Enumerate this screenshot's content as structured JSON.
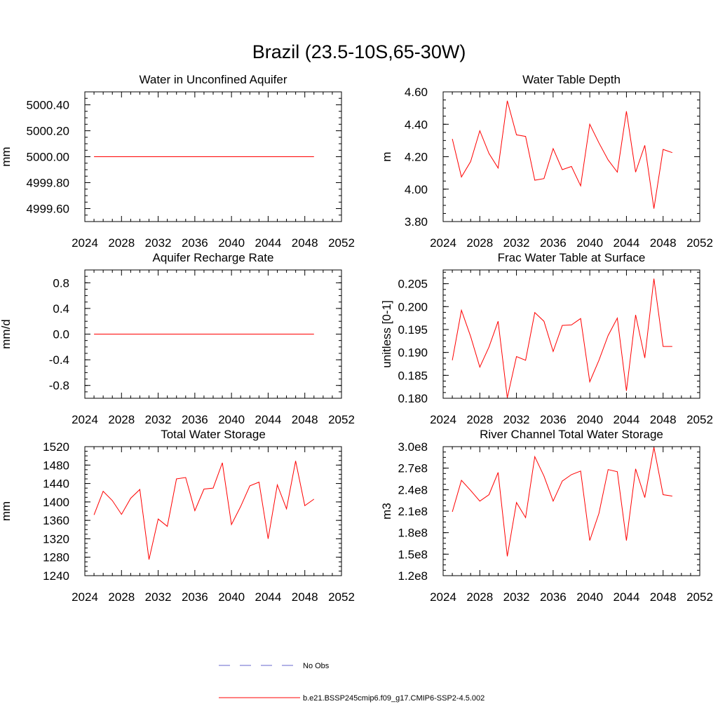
{
  "page_title": "Brazil (23.5-10S,65-30W)",
  "colors": {
    "model": "#ff0000",
    "obs": "#6666cc",
    "axis": "#000000"
  },
  "legend": {
    "obs_label": "No Obs",
    "model_label": "b.e21.BSSP245cmip6.f09_g17.CMIP6-SSP2-4.5.002"
  },
  "chart_data": [
    {
      "type": "line",
      "title": "Water in Unconfined Aquifer",
      "xlabel": "",
      "ylabel": "mm",
      "xlim": [
        2024,
        2052
      ],
      "ylim": [
        4999.5,
        5000.5
      ],
      "xticks": [
        2024,
        2028,
        2032,
        2036,
        2040,
        2044,
        2048,
        2052
      ],
      "yticks": [
        4999.6,
        4999.8,
        5000.0,
        5000.2,
        5000.4
      ],
      "ytick_labels": [
        "4999.60",
        "4999.80",
        "5000.00",
        "5000.20",
        "5000.40"
      ],
      "x": [
        2025,
        2026,
        2027,
        2028,
        2029,
        2030,
        2031,
        2032,
        2033,
        2034,
        2035,
        2036,
        2037,
        2038,
        2039,
        2040,
        2041,
        2042,
        2043,
        2044,
        2045,
        2046,
        2047,
        2048,
        2049
      ],
      "series": [
        {
          "name": "b.e21.BSSP245cmip6.f09_g17.CMIP6-SSP2-4.5.002",
          "values": [
            5000,
            5000,
            5000,
            5000,
            5000,
            5000,
            5000,
            5000,
            5000,
            5000,
            5000,
            5000,
            5000,
            5000,
            5000,
            5000,
            5000,
            5000,
            5000,
            5000,
            5000,
            5000,
            5000,
            5000,
            5000
          ]
        }
      ]
    },
    {
      "type": "line",
      "title": "Water Table Depth",
      "xlabel": "",
      "ylabel": "m",
      "xlim": [
        2024,
        2052
      ],
      "ylim": [
        3.8,
        4.6
      ],
      "xticks": [
        2024,
        2028,
        2032,
        2036,
        2040,
        2044,
        2048,
        2052
      ],
      "yticks": [
        3.8,
        4.0,
        4.2,
        4.4,
        4.6
      ],
      "ytick_labels": [
        "3.80",
        "4.00",
        "4.20",
        "4.40",
        "4.60"
      ],
      "x": [
        2025,
        2026,
        2027,
        2028,
        2029,
        2030,
        2031,
        2032,
        2033,
        2034,
        2035,
        2036,
        2037,
        2038,
        2039,
        2040,
        2041,
        2042,
        2043,
        2044,
        2045,
        2046,
        2047,
        2048,
        2049
      ],
      "series": [
        {
          "name": "b.e21.BSSP245cmip6.f09_g17.CMIP6-SSP2-4.5.002",
          "values": [
            4.31,
            4.075,
            4.17,
            4.36,
            4.22,
            4.13,
            4.545,
            4.335,
            4.325,
            4.055,
            4.065,
            4.25,
            4.12,
            4.14,
            4.02,
            4.4,
            4.285,
            4.18,
            4.105,
            4.48,
            4.105,
            4.27,
            3.88,
            4.245,
            4.225
          ]
        }
      ]
    },
    {
      "type": "line",
      "title": "Aquifer Recharge Rate",
      "xlabel": "",
      "ylabel": "mm/d",
      "xlim": [
        2024,
        2052
      ],
      "ylim": [
        -1.0,
        1.0
      ],
      "xticks": [
        2024,
        2028,
        2032,
        2036,
        2040,
        2044,
        2048,
        2052
      ],
      "yticks": [
        -0.8,
        -0.4,
        0.0,
        0.4,
        0.8
      ],
      "ytick_labels": [
        "-0.8",
        "-0.4",
        "0.0",
        "0.4",
        "0.8"
      ],
      "x": [
        2025,
        2026,
        2027,
        2028,
        2029,
        2030,
        2031,
        2032,
        2033,
        2034,
        2035,
        2036,
        2037,
        2038,
        2039,
        2040,
        2041,
        2042,
        2043,
        2044,
        2045,
        2046,
        2047,
        2048,
        2049
      ],
      "series": [
        {
          "name": "b.e21.BSSP245cmip6.f09_g17.CMIP6-SSP2-4.5.002",
          "values": [
            0,
            0,
            0,
            0,
            0,
            0,
            0,
            0,
            0,
            0,
            0,
            0,
            0,
            0,
            0,
            0,
            0,
            0,
            0,
            0,
            0,
            0,
            0,
            0,
            0
          ]
        }
      ]
    },
    {
      "type": "line",
      "title": "Frac Water Table at Surface",
      "xlabel": "",
      "ylabel": "unitless [0-1]",
      "xlim": [
        2024,
        2052
      ],
      "ylim": [
        0.18,
        0.208
      ],
      "xticks": [
        2024,
        2028,
        2032,
        2036,
        2040,
        2044,
        2048,
        2052
      ],
      "yticks": [
        0.18,
        0.185,
        0.19,
        0.195,
        0.2,
        0.205
      ],
      "ytick_labels": [
        "0.180",
        "0.185",
        "0.190",
        "0.195",
        "0.200",
        "0.205"
      ],
      "x": [
        2025,
        2026,
        2027,
        2028,
        2029,
        2030,
        2031,
        2032,
        2033,
        2034,
        2035,
        2036,
        2037,
        2038,
        2039,
        2040,
        2041,
        2042,
        2043,
        2044,
        2045,
        2046,
        2047,
        2048,
        2049
      ],
      "series": [
        {
          "name": "b.e21.BSSP245cmip6.f09_g17.CMIP6-SSP2-4.5.002",
          "values": [
            0.1883,
            0.1992,
            0.1935,
            0.1868,
            0.1912,
            0.1968,
            0.1801,
            0.1891,
            0.1883,
            0.1987,
            0.1968,
            0.1902,
            0.1959,
            0.196,
            0.1974,
            0.1836,
            0.1883,
            0.1937,
            0.1975,
            0.1816,
            0.1982,
            0.1888,
            0.2061,
            0.1913,
            0.1913
          ]
        }
      ]
    },
    {
      "type": "line",
      "title": "Total Water Storage",
      "xlabel": "",
      "ylabel": "mm",
      "xlim": [
        2024,
        2052
      ],
      "ylim": [
        1240,
        1520
      ],
      "xticks": [
        2024,
        2028,
        2032,
        2036,
        2040,
        2044,
        2048,
        2052
      ],
      "yticks": [
        1240,
        1280,
        1320,
        1360,
        1400,
        1440,
        1480,
        1520
      ],
      "ytick_labels": [
        "1240",
        "1280",
        "1320",
        "1360",
        "1400",
        "1440",
        "1480",
        "1520"
      ],
      "x": [
        2025,
        2026,
        2027,
        2028,
        2029,
        2030,
        2031,
        2032,
        2033,
        2034,
        2035,
        2036,
        2037,
        2038,
        2039,
        2040,
        2041,
        2042,
        2043,
        2044,
        2045,
        2046,
        2047,
        2048,
        2049
      ],
      "series": [
        {
          "name": "b.e21.BSSP245cmip6.f09_g17.CMIP6-SSP2-4.5.002",
          "values": [
            1372,
            1423,
            1403,
            1373,
            1408,
            1427,
            1275,
            1363,
            1347,
            1450,
            1453,
            1381,
            1428,
            1430,
            1485,
            1351,
            1390,
            1435,
            1443,
            1320,
            1437,
            1385,
            1489,
            1392,
            1406
          ]
        }
      ]
    },
    {
      "type": "line",
      "title": "River Channel Total Water Storage",
      "xlabel": "",
      "ylabel": "m3",
      "xlim": [
        2024,
        2052
      ],
      "ylim": [
        120000000.0,
        300000000.0
      ],
      "xticks": [
        2024,
        2028,
        2032,
        2036,
        2040,
        2044,
        2048,
        2052
      ],
      "yticks": [
        120000000.0,
        150000000.0,
        180000000.0,
        210000000.0,
        240000000.0,
        270000000.0,
        300000000.0
      ],
      "ytick_labels": [
        "1.2e8",
        "1.5e8",
        "1.8e8",
        "2.1e8",
        "2.4e8",
        "2.7e8",
        "3.0e8"
      ],
      "x": [
        2025,
        2026,
        2027,
        2028,
        2029,
        2030,
        2031,
        2032,
        2033,
        2034,
        2035,
        2036,
        2037,
        2038,
        2039,
        2040,
        2041,
        2042,
        2043,
        2044,
        2045,
        2046,
        2047,
        2048,
        2049
      ],
      "series": [
        {
          "name": "b.e21.BSSP245cmip6.f09_g17.CMIP6-SSP2-4.5.002",
          "values": [
            209000000.0,
            253000000.0,
            239000000.0,
            224000000.0,
            233000000.0,
            264000000.0,
            147000000.0,
            222000000.0,
            201000000.0,
            286000000.0,
            259000000.0,
            224000000.0,
            252000000.0,
            261000000.0,
            266000000.0,
            169000000.0,
            207000000.0,
            268000000.0,
            265000000.0,
            169000000.0,
            269000000.0,
            229000000.0,
            299000000.0,
            233000000.0,
            231000000.0
          ]
        }
      ]
    }
  ]
}
